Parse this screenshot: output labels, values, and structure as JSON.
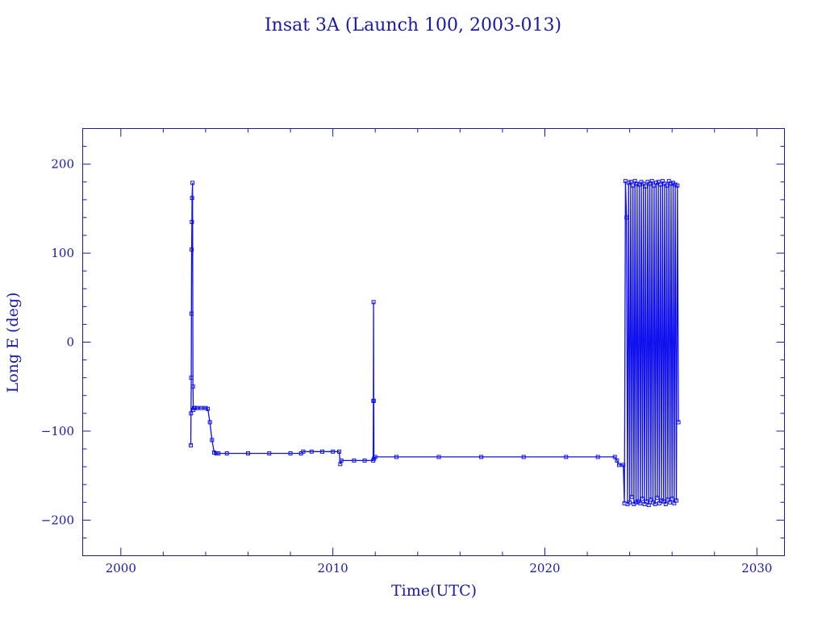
{
  "chart_data": {
    "type": "line",
    "title": "Insat 3A (Launch 100, 2003-013)",
    "xlabel": "Time(UTC)",
    "ylabel": "Long E (deg)",
    "xlim": [
      1998.2,
      2031.3
    ],
    "ylim": [
      -240,
      240
    ],
    "x_ticks": [
      2000,
      2010,
      2020,
      2030
    ],
    "y_ticks": [
      -200,
      -100,
      0,
      100,
      200
    ],
    "grid": false,
    "legend": "none",
    "colors": {
      "axes": "#1a1aa6",
      "series": "#1010ee"
    },
    "series": [
      {
        "name": "",
        "x": [
          2003.3,
          2003.31,
          2003.32,
          2003.33,
          2003.34,
          2003.35,
          2003.36,
          2003.38,
          2003.4,
          2003.42,
          2003.45,
          2003.5,
          2003.6,
          2003.8,
          2004.0,
          2004.1,
          2004.2,
          2004.3,
          2004.4,
          2004.5,
          2004.6,
          2005.0,
          2006.0,
          2007.0,
          2008.0,
          2008.5,
          2008.6,
          2009.0,
          2009.5,
          2010.0,
          2010.3,
          2010.35,
          2010.4,
          2011.0,
          2011.5,
          2011.9,
          2011.91,
          2011.92,
          2011.93,
          2011.94,
          2012.0,
          2013.0,
          2015.0,
          2017.0,
          2019.0,
          2021.0,
          2022.5,
          2023.3,
          2023.4,
          2023.5,
          2023.7,
          2023.75,
          2023.8,
          2023.85,
          2023.9,
          2023.95,
          2024.0,
          2024.05,
          2024.1,
          2024.15,
          2024.2,
          2024.25,
          2024.3,
          2024.35,
          2024.4,
          2024.45,
          2024.5,
          2024.55,
          2024.6,
          2024.65,
          2024.7,
          2024.75,
          2024.8,
          2024.85,
          2024.9,
          2024.95,
          2025.0,
          2025.05,
          2025.1,
          2025.15,
          2025.2,
          2025.25,
          2025.3,
          2025.35,
          2025.4,
          2025.45,
          2025.5,
          2025.55,
          2025.6,
          2025.65,
          2025.7,
          2025.75,
          2025.8,
          2025.85,
          2025.9,
          2025.95,
          2026.0,
          2026.05,
          2026.1,
          2026.15,
          2026.2,
          2026.25,
          2026.3
        ],
        "y": [
          -116,
          -80,
          -40,
          32,
          104,
          135,
          162,
          179,
          -50,
          -76,
          -74,
          -74,
          -74,
          -74,
          -74,
          -75,
          -90,
          -110,
          -124,
          -125,
          -125,
          -125,
          -125,
          -125,
          -125,
          -125,
          -123,
          -123,
          -123,
          -123,
          -123,
          -137,
          -133,
          -133,
          -133,
          -133,
          -66,
          45,
          -66,
          -131,
          -129,
          -129,
          -129,
          -129,
          -129,
          -129,
          -129,
          -129,
          -133,
          -138,
          -138,
          -181,
          181,
          140,
          -182,
          179,
          -180,
          180,
          -174,
          176,
          -182,
          181,
          -180,
          178,
          -179,
          177,
          -181,
          180,
          -176,
          178,
          -182,
          175,
          -179,
          180,
          -183,
          178,
          -177,
          181,
          -180,
          176,
          -182,
          179,
          -175,
          180,
          -181,
          177,
          -178,
          181,
          -179,
          178,
          -182,
          176,
          -177,
          181,
          -180,
          178,
          -176,
          179,
          -181,
          177,
          -178,
          176,
          -90
        ]
      }
    ]
  }
}
